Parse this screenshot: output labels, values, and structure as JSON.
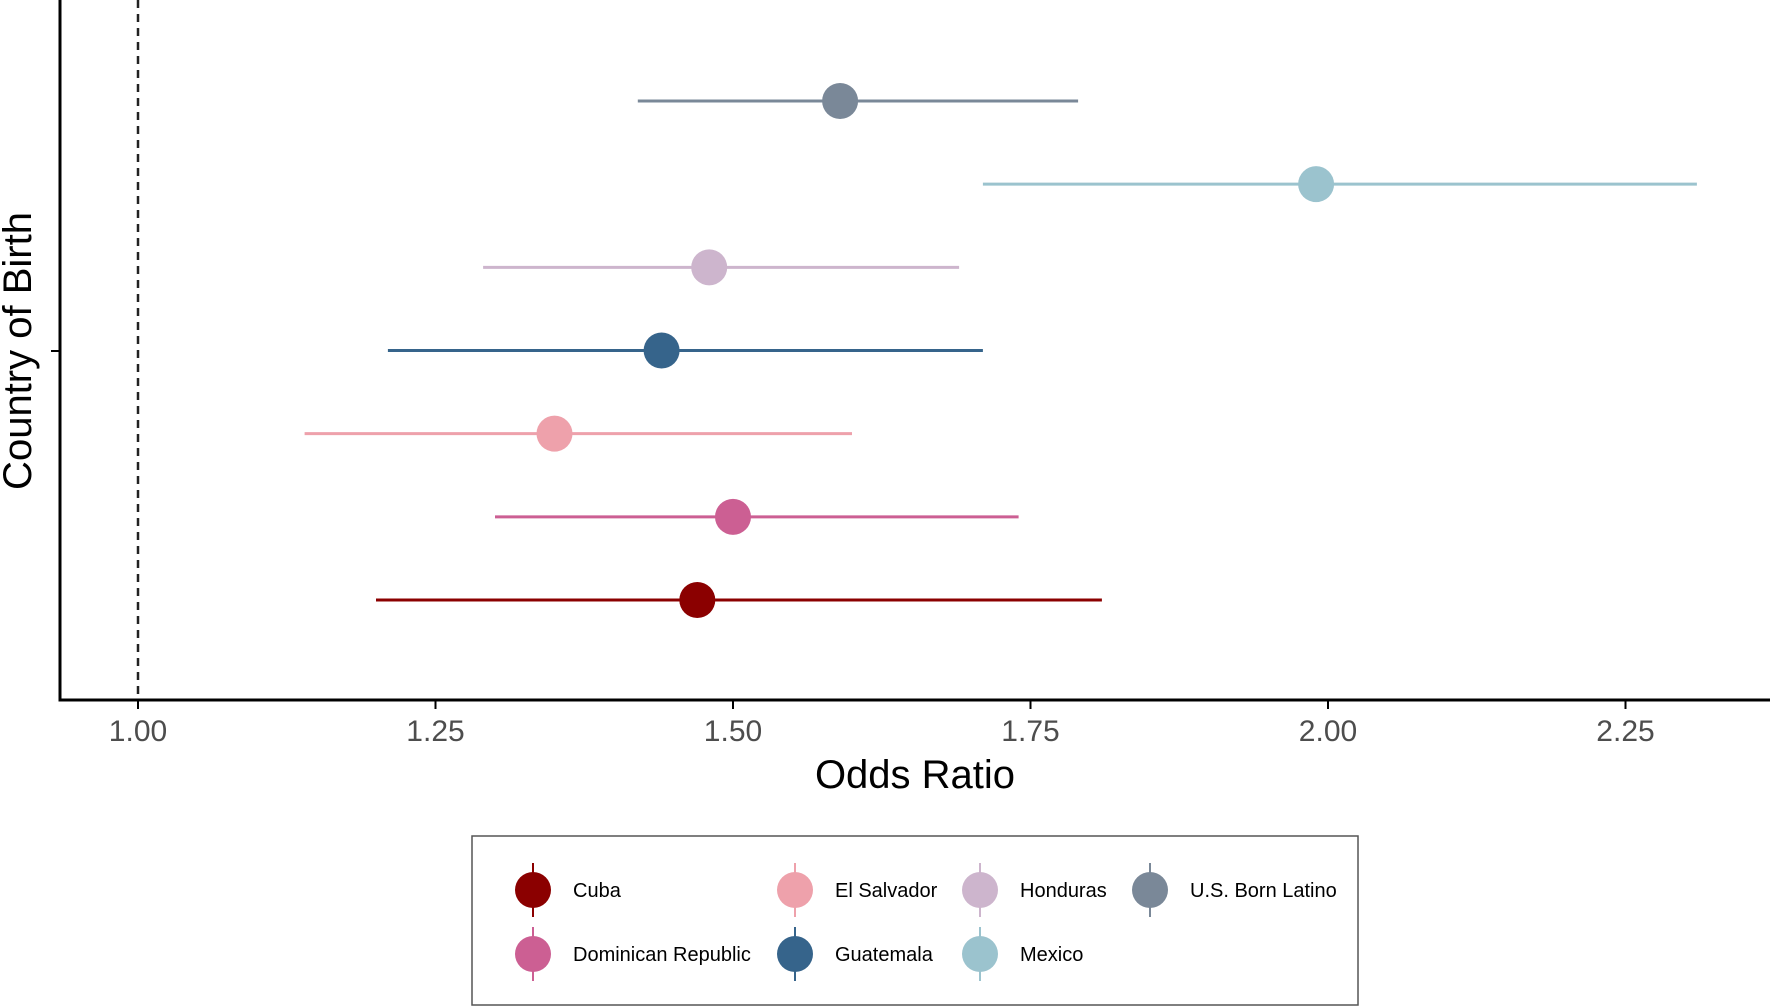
{
  "chart_data": {
    "type": "forest",
    "xlabel": "Odds Ratio",
    "ylabel": "Country of Birth",
    "xlim": [
      0.935,
      2.36
    ],
    "x_ticks": [
      1.0,
      1.25,
      1.5,
      1.75,
      2.0,
      2.25
    ],
    "x_tick_labels": [
      "1.00",
      "1.25",
      "1.50",
      "1.75",
      "2.00",
      "2.25"
    ],
    "reference_line": 1.0,
    "grid": false,
    "legend_position": "bottom",
    "series": [
      {
        "name": "Cuba",
        "estimate": 1.47,
        "lower": 1.2,
        "upper": 1.81,
        "color": "#8b0000"
      },
      {
        "name": "Dominican Republic",
        "estimate": 1.5,
        "lower": 1.3,
        "upper": 1.74,
        "color": "#cc5f93"
      },
      {
        "name": "El Salvador",
        "estimate": 1.35,
        "lower": 1.14,
        "upper": 1.6,
        "color": "#eea1ab"
      },
      {
        "name": "Guatemala",
        "estimate": 1.44,
        "lower": 1.21,
        "upper": 1.71,
        "color": "#36648b"
      },
      {
        "name": "Honduras",
        "estimate": 1.48,
        "lower": 1.29,
        "upper": 1.69,
        "color": "#cdb5cd"
      },
      {
        "name": "Mexico",
        "estimate": 1.99,
        "lower": 1.71,
        "upper": 2.31,
        "color": "#9bc3ce"
      },
      {
        "name": "U.S. Born Latino",
        "estimate": 1.59,
        "lower": 1.42,
        "upper": 1.79,
        "color": "#7a8898"
      }
    ],
    "legend_order": [
      "Cuba",
      "El Salvador",
      "Honduras",
      "U.S. Born Latino",
      "Dominican Republic",
      "Guatemala",
      "Mexico"
    ]
  }
}
